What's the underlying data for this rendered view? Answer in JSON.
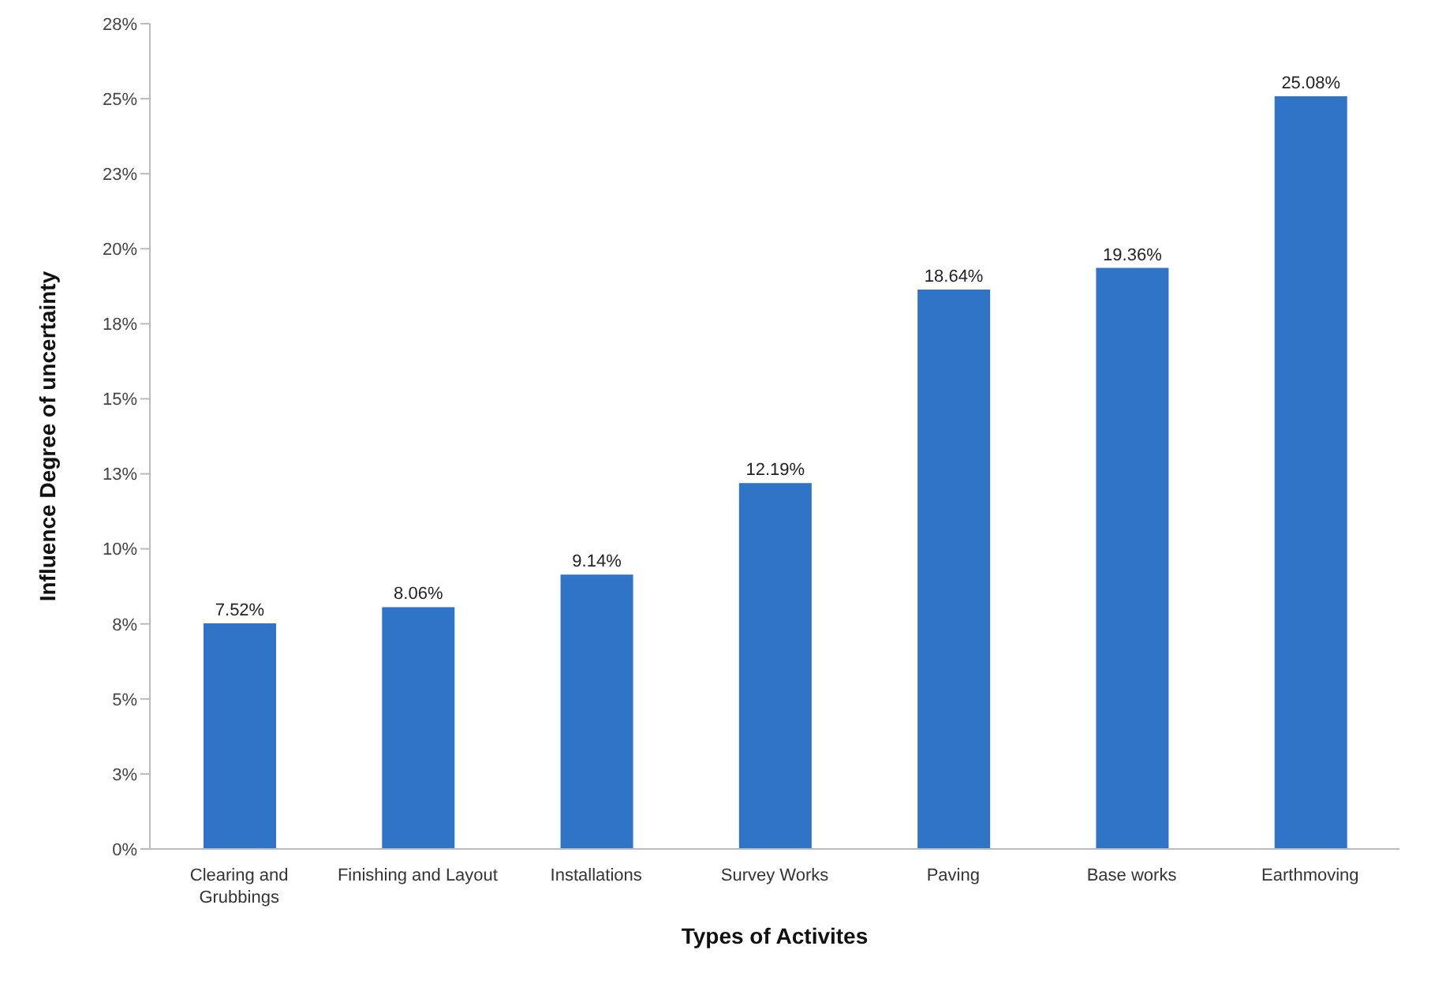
{
  "chart_data": {
    "type": "bar",
    "xlabel": "Types of Activites",
    "ylabel": "Influence Degree of uncertainty",
    "categories": [
      "Clearing and Grubbings",
      "Finishing and Layout",
      "Installations",
      "Survey Works",
      "Paving",
      "Base works",
      "Earthmoving"
    ],
    "values": [
      7.52,
      8.06,
      9.14,
      12.19,
      18.64,
      19.36,
      25.08
    ],
    "value_labels": [
      "7.52%",
      "8.06%",
      "9.14%",
      "12.19%",
      "18.64%",
      "19.36%",
      "25.08%"
    ],
    "color": "#2f74c6",
    "ylim": [
      0,
      27.5
    ],
    "yticks": [
      {
        "value": 0,
        "label": "0%"
      },
      {
        "value": 2.5,
        "label": "3%"
      },
      {
        "value": 5,
        "label": "5%"
      },
      {
        "value": 7.5,
        "label": "8%"
      },
      {
        "value": 10,
        "label": "10%"
      },
      {
        "value": 12.5,
        "label": "13%"
      },
      {
        "value": 15,
        "label": "15%"
      },
      {
        "value": 17.5,
        "label": "18%"
      },
      {
        "value": 20,
        "label": "20%"
      },
      {
        "value": 22.5,
        "label": "23%"
      },
      {
        "value": 25,
        "label": "25%"
      },
      {
        "value": 27.5,
        "label": "28%"
      }
    ],
    "grid": false,
    "legend": false
  }
}
